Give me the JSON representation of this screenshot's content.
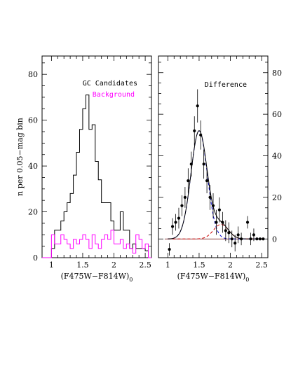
{
  "colors": {
    "gc": "#000000",
    "background": "#ff00ff",
    "fit_total": "#000000",
    "fit_blue": "#0000cc",
    "fit_red": "#cc0000",
    "baseline": "#660000"
  },
  "chart_data": [
    {
      "type": "histogram",
      "panel": "left",
      "xlabel": "(F475W−F814W)",
      "xlabel_sub": "0",
      "ylabel": "n per 0.05−mag bin",
      "xlim": [
        0.85,
        2.6
      ],
      "ylim": [
        0,
        88
      ],
      "xticks": [
        {
          "v": 1,
          "label": "1"
        },
        {
          "v": 1.5,
          "label": "1.5"
        },
        {
          "v": 2,
          "label": "2"
        },
        {
          "v": 2.5,
          "label": "2.5"
        }
      ],
      "yticks": [
        {
          "v": 0,
          "label": "0"
        },
        {
          "v": 20,
          "label": "20"
        },
        {
          "v": 40,
          "label": "40"
        },
        {
          "v": 60,
          "label": "60"
        },
        {
          "v": 80,
          "label": "80"
        }
      ],
      "bin_width": 0.05,
      "series": [
        {
          "name": "GC Candidates",
          "color_key": "gc",
          "bin_start": 0.85,
          "values": [
            0,
            0,
            0,
            4,
            12,
            12,
            16,
            20,
            24,
            28,
            36,
            46,
            56,
            65,
            71,
            56,
            58,
            42,
            34,
            24,
            24,
            24,
            16,
            12,
            12,
            20,
            12,
            12,
            4,
            6,
            4,
            4,
            4,
            3,
            0
          ]
        },
        {
          "name": "Background",
          "color_key": "background",
          "bin_start": 0.85,
          "values": [
            0,
            0,
            0,
            10,
            6,
            6,
            10,
            8,
            6,
            4,
            8,
            6,
            8,
            10,
            8,
            4,
            10,
            6,
            4,
            8,
            10,
            8,
            12,
            6,
            6,
            8,
            4,
            6,
            4,
            2,
            10,
            8,
            4,
            6,
            0
          ]
        }
      ]
    },
    {
      "type": "scatter",
      "panel": "right",
      "title": "Difference",
      "xlabel": "(F475W−F814W)",
      "xlabel_sub": "0",
      "xlim": [
        0.85,
        2.6
      ],
      "ylim": [
        -9,
        88
      ],
      "xticks": [
        {
          "v": 1,
          "label": "1"
        },
        {
          "v": 1.5,
          "label": "1.5"
        },
        {
          "v": 2,
          "label": "2"
        },
        {
          "v": 2.5,
          "label": "2.5"
        }
      ],
      "yticks": [
        {
          "v": 0,
          "label": "0"
        },
        {
          "v": 20,
          "label": "20"
        },
        {
          "v": 40,
          "label": "40"
        },
        {
          "v": 60,
          "label": "60"
        },
        {
          "v": 80,
          "label": "80"
        }
      ],
      "points": [
        {
          "x": 1.025,
          "y": -5,
          "err": 3
        },
        {
          "x": 1.075,
          "y": 6,
          "err": 4
        },
        {
          "x": 1.125,
          "y": 8,
          "err": 4
        },
        {
          "x": 1.175,
          "y": 10,
          "err": 5
        },
        {
          "x": 1.225,
          "y": 16,
          "err": 5
        },
        {
          "x": 1.275,
          "y": 20,
          "err": 5
        },
        {
          "x": 1.325,
          "y": 28,
          "err": 6
        },
        {
          "x": 1.375,
          "y": 36,
          "err": 6
        },
        {
          "x": 1.425,
          "y": 52,
          "err": 7
        },
        {
          "x": 1.475,
          "y": 64,
          "err": 8
        },
        {
          "x": 1.525,
          "y": 50,
          "err": 7
        },
        {
          "x": 1.575,
          "y": 36,
          "err": 7
        },
        {
          "x": 1.625,
          "y": 28,
          "err": 6
        },
        {
          "x": 1.675,
          "y": 20,
          "err": 6
        },
        {
          "x": 1.725,
          "y": 16,
          "err": 6
        },
        {
          "x": 1.775,
          "y": 8,
          "err": 6
        },
        {
          "x": 1.825,
          "y": 14,
          "err": 6
        },
        {
          "x": 1.875,
          "y": 8,
          "err": 5
        },
        {
          "x": 1.925,
          "y": 4,
          "err": 5
        },
        {
          "x": 1.975,
          "y": 3,
          "err": 5
        },
        {
          "x": 2.025,
          "y": 0,
          "err": 4
        },
        {
          "x": 2.075,
          "y": -2,
          "err": 4
        },
        {
          "x": 2.125,
          "y": 2,
          "err": 4
        },
        {
          "x": 2.175,
          "y": 0,
          "err": 3
        },
        {
          "x": 2.275,
          "y": 8,
          "err": 3
        },
        {
          "x": 2.325,
          "y": 0,
          "err": 3
        },
        {
          "x": 2.375,
          "y": 2,
          "err": 3
        },
        {
          "x": 2.425,
          "y": 0,
          "err": 0
        },
        {
          "x": 2.475,
          "y": 0,
          "err": 0
        },
        {
          "x": 2.525,
          "y": 0,
          "err": 0
        }
      ],
      "fit_components": [
        {
          "color_key": "fit_blue",
          "dash": true,
          "amp": 52,
          "mu": 1.5,
          "sigma": 0.13
        },
        {
          "color_key": "fit_red",
          "dash": true,
          "amp": 7,
          "mu": 1.85,
          "sigma": 0.12
        }
      ],
      "fit_total_color_key": "fit_total",
      "fit_range": [
        1.0,
        2.55
      ]
    }
  ]
}
